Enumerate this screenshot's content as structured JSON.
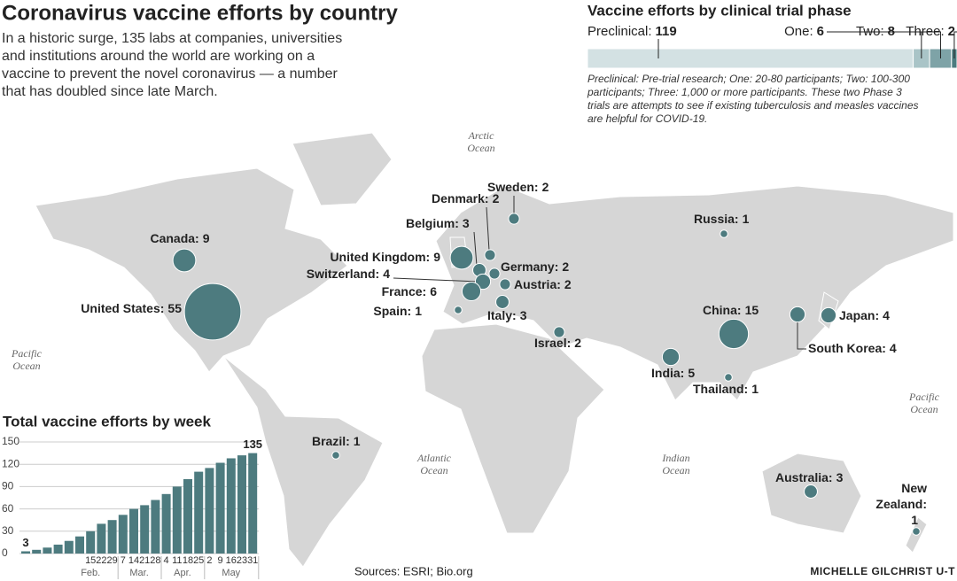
{
  "header": {
    "title": "Coronavirus vaccine efforts by country",
    "subtitle_lines": [
      "In a historic surge, 135 labs at companies, universities",
      "and institutions around the world are working on a",
      "vaccine to prevent the novel coronavirus — a number",
      "that has doubled since late March."
    ]
  },
  "chart_data": [
    {
      "type": "bubble-map",
      "categories": [
        "United States:",
        "Canada:",
        "United Kingdom:",
        "Belgium:",
        "Denmark:",
        "Sweden:",
        "Germany:",
        "Switzerland:",
        "France:",
        "Austria:",
        "Spain:",
        "Italy:",
        "Israel:",
        "Russia:",
        "China:",
        "South Korea:",
        "Japan:",
        "India:",
        "Thailand:",
        "Brazil:",
        "Australia:",
        "New Zealand:"
      ],
      "values": [
        55,
        9,
        9,
        3,
        2,
        2,
        2,
        4,
        6,
        2,
        1,
        3,
        2,
        1,
        15,
        4,
        4,
        5,
        1,
        1,
        3,
        1
      ],
      "color": "#4d7b7f",
      "ocean_labels": [
        "Arctic Ocean",
        "Pacific Ocean",
        "Atlantic Ocean",
        "Indian Ocean",
        "Pacific Ocean"
      ]
    },
    {
      "type": "stacked-bar",
      "title": "Vaccine efforts by clinical trial phase",
      "categories": [
        "Preclinical:",
        "One:",
        "Two:",
        "Three:"
      ],
      "values": [
        119,
        6,
        8,
        2
      ],
      "colors": [
        "#d3e1e3",
        "#a9c4c7",
        "#7ea3a7",
        "#4d7b7f"
      ],
      "note_lines": [
        "Preclinical: Pre-trial research; One: 20-80 participants; Two: 100-300",
        "participants; Three: 1,000 or more participants. These two Phase 3",
        "trials are attempts to see if existing tuberculosis and measles vaccines",
        "are helpful for COVID-19."
      ]
    },
    {
      "type": "bar",
      "title": "Total vaccine efforts by week",
      "categories": [
        null,
        null,
        null,
        null,
        null,
        null,
        "15",
        "22",
        "29",
        "7",
        "14",
        "21",
        "28",
        "4",
        "11",
        "18",
        "25",
        "2",
        "9",
        "16",
        "23",
        "31"
      ],
      "values": [
        3,
        5,
        8,
        12,
        17,
        23,
        30,
        40,
        45,
        52,
        60,
        65,
        72,
        80,
        90,
        100,
        110,
        115,
        122,
        128,
        132,
        135
      ],
      "month_labels": [
        "Feb.",
        "Mar.",
        "Apr.",
        "May"
      ],
      "color": "#4d7b7f",
      "ylim": [
        0,
        150
      ],
      "yticks": [
        0,
        30,
        60,
        90,
        120,
        150
      ],
      "grid": true
    }
  ],
  "footer": {
    "sources": "Sources: ESRI; Bio.org",
    "credit": "MICHELLE GILCHRIST U-T"
  }
}
